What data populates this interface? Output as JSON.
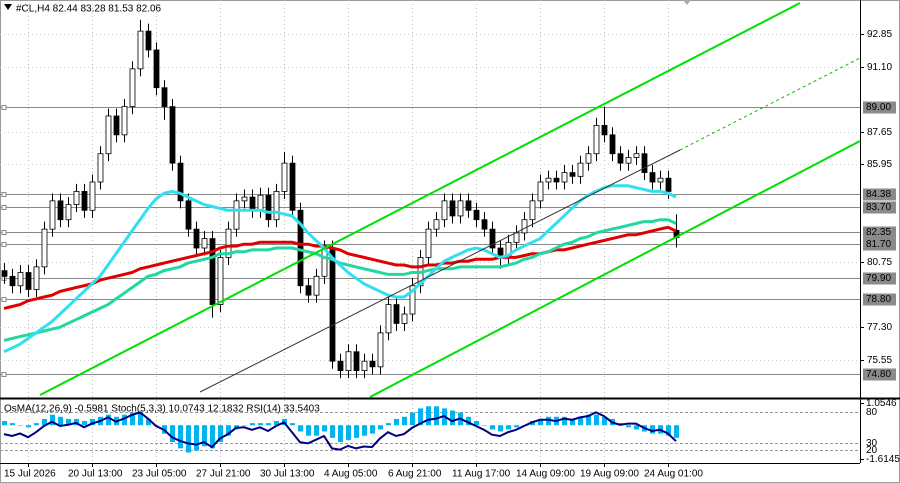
{
  "chart_data": [
    {
      "type": "candlestick",
      "title": "#CL,H4 82.44 83.28 81.53 82.06",
      "categories": [
        null,
        null,
        null,
        "15 Jul 2026",
        null,
        null,
        null,
        null,
        null,
        null,
        null,
        "20 Jul 13:00",
        null,
        null,
        null,
        null,
        null,
        null,
        null,
        "23 Jul 05:00",
        null,
        null,
        null,
        null,
        null,
        null,
        null,
        "27 Jul 21:00",
        null,
        null,
        null,
        null,
        null,
        null,
        null,
        "30 Jul 13:00",
        null,
        null,
        null,
        null,
        null,
        null,
        null,
        "4 Aug 05:00",
        null,
        null,
        null,
        null,
        null,
        null,
        null,
        "6 Aug 21:00",
        null,
        null,
        null,
        null,
        null,
        null,
        null,
        "11 Aug 17:00",
        null,
        null,
        null,
        null,
        null,
        null,
        null,
        "14 Aug 09:00",
        null,
        null,
        null,
        null,
        null,
        null,
        null,
        "19 Aug 09:00",
        null,
        null,
        null,
        null,
        null,
        null,
        null,
        "24 Aug 01:00",
        null
      ],
      "open": [
        80.3,
        80.0,
        79.5,
        80.2,
        79.3,
        80.5,
        82.5,
        84.0,
        83.0,
        83.8,
        84.5,
        83.5,
        85.0,
        86.5,
        88.5,
        87.5,
        89.0,
        91.0,
        93.0,
        92.0,
        90.0,
        89.0,
        86.0,
        84.0,
        82.5,
        81.5,
        82.0,
        78.5,
        81.0,
        82.5,
        84.0,
        84.2,
        83.5,
        84.3,
        83.0,
        84.5,
        86.0,
        83.5,
        79.5,
        79.0,
        80.0,
        81.5,
        75.5,
        75.0,
        76.0,
        75.0,
        75.5,
        75.2,
        77.0,
        78.5,
        77.5,
        78.0,
        79.5,
        81.0,
        82.5,
        83.0,
        84.0,
        83.2,
        84.0,
        83.5,
        83.0,
        82.5,
        81.5,
        81.0,
        81.8,
        82.3,
        83.0,
        84.0,
        85.0,
        85.2,
        85.0,
        85.5,
        85.3,
        86.0,
        86.5,
        88.0,
        87.5,
        86.5,
        86.0,
        86.3,
        86.5,
        85.5,
        85.0,
        85.2,
        82.44
      ],
      "high": [
        80.7,
        80.4,
        80.6,
        80.6,
        80.9,
        82.9,
        84.4,
        84.4,
        84.2,
        84.9,
        84.9,
        85.4,
        86.9,
        88.9,
        88.9,
        89.4,
        91.4,
        93.6,
        93.4,
        92.4,
        90.4,
        89.4,
        86.4,
        84.4,
        82.9,
        82.4,
        82.4,
        81.4,
        82.9,
        84.4,
        84.6,
        84.6,
        84.7,
        84.7,
        84.9,
        86.6,
        86.4,
        83.9,
        79.9,
        80.4,
        81.9,
        81.9,
        75.9,
        76.4,
        76.4,
        75.9,
        75.9,
        77.4,
        78.9,
        78.9,
        78.4,
        79.9,
        81.4,
        82.9,
        83.4,
        84.4,
        84.4,
        84.4,
        84.4,
        83.9,
        83.4,
        82.9,
        81.9,
        82.2,
        82.7,
        83.4,
        84.4,
        85.4,
        85.6,
        85.6,
        85.9,
        85.9,
        86.4,
        86.9,
        88.4,
        89.0,
        87.9,
        86.9,
        86.7,
        86.9,
        86.9,
        85.9,
        85.6,
        85.6,
        83.28
      ],
      "low": [
        79.6,
        79.1,
        79.1,
        78.9,
        78.9,
        80.1,
        82.1,
        82.6,
        82.6,
        83.4,
        83.1,
        83.1,
        84.6,
        86.1,
        87.1,
        87.1,
        88.6,
        90.6,
        91.6,
        89.6,
        88.3,
        85.6,
        83.6,
        82.1,
        81.1,
        81.1,
        77.8,
        78.1,
        80.6,
        82.1,
        83.6,
        83.1,
        83.1,
        82.6,
        82.6,
        84.1,
        83.1,
        79.1,
        78.6,
        78.6,
        79.6,
        75.1,
        74.6,
        74.6,
        74.6,
        74.6,
        74.8,
        74.8,
        76.6,
        77.1,
        77.1,
        77.6,
        79.1,
        80.6,
        82.1,
        82.6,
        82.8,
        82.8,
        83.1,
        82.6,
        82.1,
        81.1,
        80.4,
        80.6,
        81.4,
        81.9,
        82.6,
        83.6,
        84.6,
        84.6,
        84.6,
        84.9,
        84.9,
        85.6,
        86.1,
        87.1,
        86.1,
        85.6,
        85.6,
        85.9,
        85.1,
        84.6,
        84.6,
        84.1,
        81.53
      ],
      "close": [
        80.0,
        79.5,
        80.2,
        79.3,
        80.5,
        82.5,
        84.0,
        83.0,
        83.8,
        84.5,
        83.5,
        85.0,
        86.5,
        88.5,
        87.5,
        89.0,
        91.0,
        93.0,
        92.0,
        90.0,
        89.0,
        86.0,
        84.0,
        82.5,
        81.5,
        82.0,
        78.5,
        81.0,
        82.5,
        84.0,
        84.2,
        83.5,
        84.3,
        83.0,
        84.5,
        86.0,
        83.5,
        79.5,
        79.0,
        80.0,
        81.5,
        75.5,
        75.0,
        76.0,
        75.0,
        75.5,
        75.2,
        77.0,
        78.5,
        77.5,
        78.0,
        79.5,
        81.0,
        82.5,
        83.0,
        84.0,
        83.2,
        84.0,
        83.5,
        83.0,
        82.5,
        81.5,
        81.0,
        81.8,
        82.3,
        83.0,
        84.0,
        85.0,
        85.2,
        85.0,
        85.5,
        85.3,
        86.0,
        86.5,
        88.0,
        87.5,
        86.5,
        86.0,
        86.3,
        86.5,
        85.5,
        85.0,
        85.2,
        84.5,
        82.06
      ],
      "up_color": "#ffffff",
      "down_color": "#000000",
      "series": [
        {
          "color": "#e00000",
          "values": [
            78.3,
            78.4,
            78.5,
            78.7,
            78.8,
            78.9,
            79.0,
            79.2,
            79.3,
            79.4,
            79.5,
            79.6,
            79.8,
            79.9,
            80.0,
            80.1,
            80.2,
            80.4,
            80.5,
            80.6,
            80.7,
            80.8,
            80.9,
            81.0,
            81.1,
            81.2,
            81.3,
            81.5,
            81.6,
            81.6,
            81.7,
            81.7,
            81.8,
            81.8,
            81.8,
            81.8,
            81.8,
            81.7,
            81.7,
            81.6,
            81.6,
            81.5,
            81.4,
            81.2,
            81.1,
            81.0,
            80.9,
            80.8,
            80.7,
            80.6,
            80.6,
            80.5,
            80.5,
            80.6,
            80.6,
            80.7,
            80.7,
            80.8,
            80.8,
            80.9,
            80.9,
            80.9,
            81.0,
            81.0,
            81.0,
            81.1,
            81.2,
            81.2,
            81.3,
            81.4,
            81.4,
            81.5,
            81.6,
            81.7,
            81.8,
            81.9,
            82.0,
            82.1,
            82.2,
            82.2,
            82.3,
            82.4,
            82.5,
            82.6,
            82.4
          ]
        },
        {
          "color": "#20d8a0",
          "values": [
            76.6,
            76.7,
            76.8,
            76.9,
            77.0,
            77.1,
            77.2,
            77.3,
            77.5,
            77.7,
            77.9,
            78.1,
            78.3,
            78.5,
            78.8,
            79.1,
            79.4,
            79.7,
            80.0,
            80.1,
            80.3,
            80.4,
            80.5,
            80.7,
            80.8,
            80.9,
            81.0,
            81.2,
            81.2,
            81.3,
            81.3,
            81.4,
            81.4,
            81.4,
            81.5,
            81.5,
            81.5,
            81.4,
            81.3,
            81.2,
            81.0,
            80.9,
            80.7,
            80.6,
            80.5,
            80.4,
            80.3,
            80.2,
            80.1,
            80.1,
            80.1,
            80.2,
            80.2,
            80.3,
            80.4,
            80.4,
            80.4,
            80.5,
            80.5,
            80.5,
            80.5,
            80.5,
            80.5,
            80.6,
            80.7,
            80.9,
            81.0,
            81.2,
            81.3,
            81.5,
            81.7,
            81.8,
            82.0,
            82.1,
            82.3,
            82.4,
            82.5,
            82.6,
            82.7,
            82.8,
            82.9,
            82.9,
            83.0,
            83.0,
            82.8
          ]
        },
        {
          "color": "#30e0f0",
          "values": [
            76.0,
            76.2,
            76.4,
            76.7,
            77.0,
            77.3,
            77.6,
            78.0,
            78.4,
            78.8,
            79.2,
            79.6,
            80.0,
            80.6,
            81.2,
            81.8,
            82.4,
            83.0,
            83.6,
            84.1,
            84.4,
            84.5,
            84.4,
            84.2,
            84.0,
            83.8,
            83.7,
            83.6,
            83.5,
            83.5,
            83.5,
            83.5,
            83.5,
            83.4,
            83.4,
            83.3,
            83.2,
            82.8,
            82.3,
            81.9,
            81.5,
            81.0,
            80.6,
            80.2,
            79.9,
            79.6,
            79.4,
            79.2,
            79.0,
            78.9,
            78.9,
            79.2,
            79.6,
            80.0,
            80.4,
            80.8,
            81.0,
            81.2,
            81.4,
            81.5,
            81.4,
            81.2,
            81.0,
            81.1,
            81.4,
            81.6,
            81.8,
            82.0,
            82.4,
            82.8,
            83.2,
            83.6,
            84.0,
            84.3,
            84.5,
            84.7,
            84.8,
            84.8,
            84.8,
            84.7,
            84.6,
            84.5,
            84.5,
            84.4,
            84.2
          ]
        }
      ],
      "ylim": [
        73.6,
        94.65
      ],
      "yticks": [
        92.85,
        {
          "value": 91.1,
          "label": "91.10"
        },
        87.65,
        85.95,
        80.75,
        {
          "value": 77.3,
          "label": "77.30"
        },
        75.55
      ],
      "levels": [
        {
          "value": 89,
          "label": "89.00"
        },
        {
          "value": 84.38,
          "label": "84.38"
        },
        {
          "value": 83.7,
          "label": "83.70"
        },
        {
          "value": 82.35,
          "label": "82.35"
        },
        {
          "value": 81.7,
          "label": "81.70"
        },
        {
          "value": 79.9,
          "label": "79.90"
        },
        {
          "value": 78.8,
          "label": "78.80"
        },
        {
          "value": 74.8,
          "label": "74.80"
        }
      ],
      "grid": true
    },
    {
      "type": "bar",
      "title": "OsMA(12,26,9) -0.5981 Stoch(5,3,3) 10.0743 12.1832 RSI(14) 33.5403",
      "series": [
        {
          "type": "bar",
          "color": "#00b4f0",
          "values": [
            0.2,
            0.1,
            0.0,
            -0.1,
            0.1,
            0.3,
            0.5,
            0.4,
            0.3,
            0.3,
            0.2,
            0.3,
            0.4,
            0.5,
            0.4,
            0.5,
            0.6,
            0.6,
            0.3,
            0.0,
            -0.4,
            -0.8,
            -1.1,
            -1.3,
            -1.2,
            -1.0,
            -1.1,
            -0.8,
            -0.5,
            -0.2,
            0.0,
            0.1,
            0.1,
            0.1,
            0.2,
            0.3,
            0.1,
            -0.3,
            -0.5,
            -0.5,
            -0.3,
            -0.6,
            -0.8,
            -0.7,
            -0.6,
            -0.5,
            -0.4,
            -0.2,
            0.1,
            0.3,
            0.4,
            0.6,
            0.8,
            0.9,
            0.9,
            0.8,
            0.7,
            0.6,
            0.4,
            0.2,
            0.0,
            -0.2,
            -0.3,
            -0.2,
            -0.1,
            0.0,
            0.2,
            0.3,
            0.4,
            0.4,
            0.4,
            0.3,
            0.4,
            0.5,
            0.5,
            0.4,
            0.3,
            0.1,
            -0.1,
            -0.2,
            -0.3,
            -0.4,
            -0.4,
            -0.5,
            -0.5981
          ]
        },
        {
          "type": "line",
          "axis": "y2",
          "color": "#000080",
          "values": [
            45,
            42,
            46,
            40,
            48,
            58,
            65,
            58,
            60,
            63,
            56,
            62,
            66,
            72,
            65,
            70,
            76,
            80,
            70,
            58,
            52,
            40,
            34,
            30,
            28,
            32,
            24,
            38,
            45,
            55,
            56,
            52,
            56,
            50,
            58,
            64,
            48,
            32,
            30,
            36,
            42,
            22,
            20,
            26,
            22,
            25,
            24,
            38,
            48,
            42,
            45,
            55,
            62,
            68,
            70,
            74,
            66,
            70,
            64,
            58,
            52,
            44,
            42,
            48,
            52,
            58,
            64,
            68,
            68,
            66,
            70,
            68,
            72,
            74,
            80,
            74,
            64,
            60,
            62,
            62,
            55,
            50,
            52,
            46,
            33.5403
          ]
        }
      ],
      "ylim": [
        -1.75,
        1.2
      ],
      "yticks": [
        1.0546,
        -1.6145
      ],
      "y2lim": [
        0,
        100
      ],
      "y2ticks": [
        20,
        30,
        80
      ]
    }
  ]
}
